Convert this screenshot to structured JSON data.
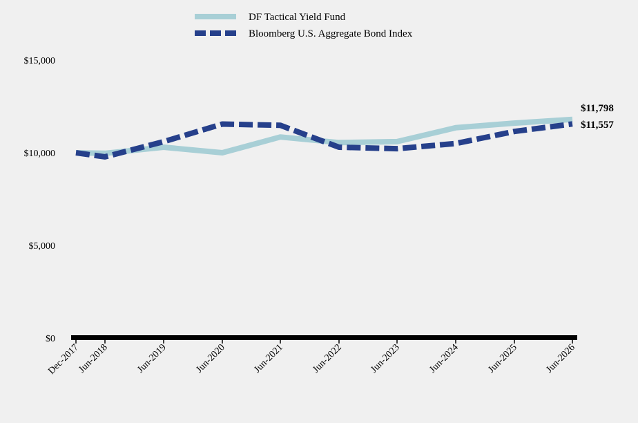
{
  "chart_data": {
    "type": "line",
    "x": [
      "Dec-2017",
      "Jun-2018",
      "Jun-2019",
      "Jun-2020",
      "Jun-2021",
      "Jun-2022",
      "Jun-2023",
      "Jun-2024",
      "Jun-2025",
      "Jun-2026"
    ],
    "series": [
      {
        "name": "DF Tactical Yield Fund",
        "color": "#a8cfd6",
        "style": "solid",
        "values": [
          10000,
          9970,
          10300,
          10000,
          10850,
          10550,
          10600,
          11350,
          11600,
          11798
        ]
      },
      {
        "name": "Bloomberg U.S. Aggregate Bond Index",
        "color": "#26408b",
        "style": "dashed",
        "values": [
          10000,
          9780,
          10600,
          11550,
          11480,
          10300,
          10220,
          10500,
          11150,
          11557
        ]
      }
    ],
    "y_ticks": [
      {
        "value": 15000,
        "label": "$15,000"
      },
      {
        "value": 10000,
        "label": "$10,000"
      },
      {
        "value": 5000,
        "label": "$5,000"
      },
      {
        "value": 0,
        "label": "$0"
      }
    ],
    "ylim": [
      0,
      15000
    ],
    "end_labels": [
      "$11,798",
      "$11,557"
    ],
    "legend_position": "top-center",
    "grid": false,
    "title": "",
    "xlabel": "",
    "ylabel": ""
  }
}
